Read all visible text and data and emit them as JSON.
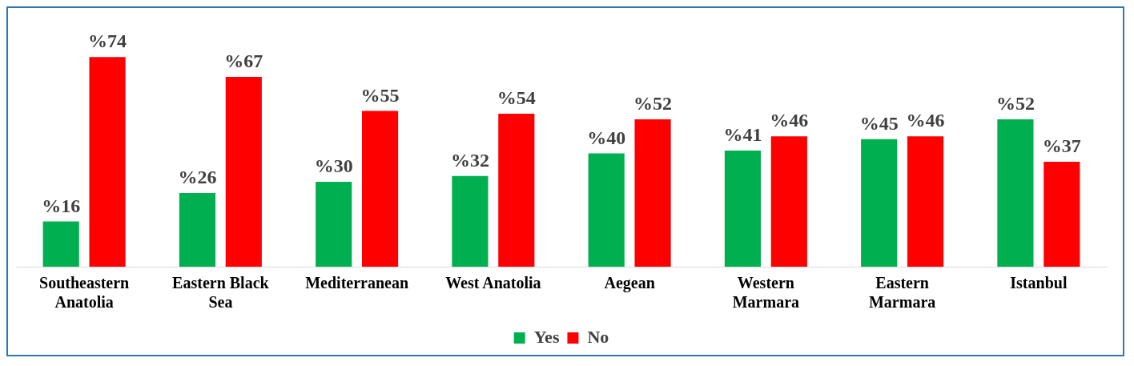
{
  "chart_data": {
    "type": "bar",
    "categories": [
      "Southeastern Anatolia",
      "Eastern Black Sea",
      "Mediterranean",
      "West Anatolia",
      "Aegean",
      "Western Marmara",
      "Eastern Marmara",
      "Istanbul"
    ],
    "series": [
      {
        "name": "Yes",
        "color": "#00b050",
        "values": [
          16,
          26,
          30,
          32,
          40,
          41,
          45,
          52
        ],
        "value_labels": [
          "%16",
          "%26",
          "%30",
          "%32",
          "%40",
          "%41",
          "%45",
          "%52"
        ]
      },
      {
        "name": "No",
        "color": "#ff0000",
        "values": [
          74,
          67,
          55,
          54,
          52,
          46,
          46,
          37
        ],
        "value_labels": [
          "%74",
          "%67",
          "%55",
          "%54",
          "%52",
          "%46",
          "%46",
          "%37"
        ]
      }
    ],
    "legend": "bottom",
    "grid": false
  }
}
